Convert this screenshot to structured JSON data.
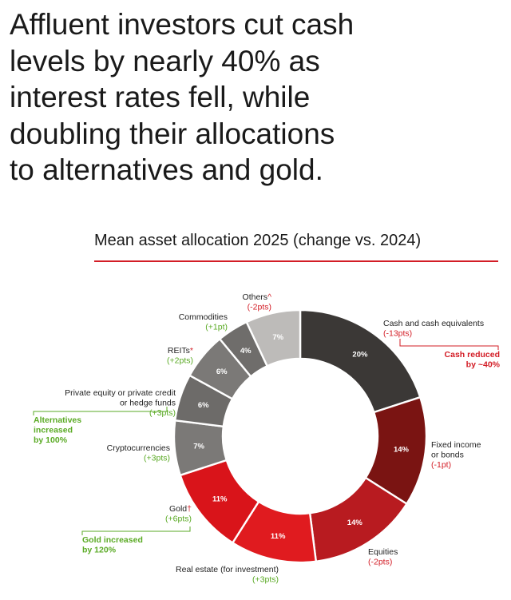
{
  "headline": [
    "Affluent investors cut cash",
    "levels by nearly 40% as",
    "interest rates fell, while",
    "doubling their allocations",
    "to alternatives and gold."
  ],
  "chart_data": {
    "type": "pie",
    "title": "Mean asset allocation 2025 (change vs. 2024)",
    "colors": {
      "accent_red": "#d31d26",
      "accent_green": "#5aaa24",
      "label_dark": "#222222"
    },
    "slices": [
      {
        "name": "Cash and cash equivalents",
        "value": 20,
        "value_label": "20%",
        "change": "(-13pts)",
        "change_dir": "down",
        "color": "#3b3836"
      },
      {
        "name": "Fixed income or bonds",
        "value": 14,
        "value_label": "14%",
        "change": "(-1pt)",
        "change_dir": "down",
        "color": "#7a1412"
      },
      {
        "name": "Equities",
        "value": 14,
        "value_label": "14%",
        "change": "(-2pts)",
        "change_dir": "down",
        "color": "#b81b20"
      },
      {
        "name": "Real estate (for investment)",
        "value": 11,
        "value_label": "11%",
        "change": "(+3pts)",
        "change_dir": "up",
        "color": "#e01b1f"
      },
      {
        "name": "Gold†",
        "value": 11,
        "value_label": "11%",
        "change": "(+6pts)",
        "change_dir": "up",
        "color": "#d9141a"
      },
      {
        "name": "Cryptocurrencies",
        "value": 7,
        "value_label": "7%",
        "change": "(+3pts)",
        "change_dir": "up",
        "color": "#7b7977"
      },
      {
        "name": "Private equity or private credit or hedge funds",
        "value": 6,
        "value_label": "6%",
        "change": "(+3pts)",
        "change_dir": "up",
        "color": "#6d6b69"
      },
      {
        "name": "REITs*",
        "value": 6,
        "value_label": "6%",
        "change": "(+2pts)",
        "change_dir": "up",
        "color": "#7b7977"
      },
      {
        "name": "Commodities",
        "value": 4,
        "value_label": "4%",
        "change": "(+1pt)",
        "change_dir": "up",
        "color": "#6f6d6b"
      },
      {
        "name": "Others^",
        "value": 7,
        "value_label": "7%",
        "change": "(-2pts)",
        "change_dir": "down",
        "color": "#bdbbb9"
      }
    ],
    "outside_labels": {
      "cash": {
        "lines": [
          "Cash and cash equivalents"
        ],
        "change": "(-13pts)"
      },
      "fixed": {
        "lines": [
          "Fixed income",
          "or bonds"
        ],
        "change": "(-1pt)"
      },
      "equities": {
        "lines": [
          "Equities"
        ],
        "change": "(-2pts)"
      },
      "realestate": {
        "lines": [
          "Real estate (for investment)"
        ],
        "change": "(+3pts)"
      },
      "gold": {
        "lines": [
          "Gold"
        ],
        "mark": "†",
        "change": "(+6pts)"
      },
      "crypto": {
        "lines": [
          "Cryptocurrencies"
        ],
        "change": "(+3pts)"
      },
      "pe": {
        "lines": [
          "Private equity or private credit",
          "or hedge funds"
        ],
        "change": "(+3pts)"
      },
      "reits": {
        "lines": [
          "REITs"
        ],
        "mark": "*",
        "change": "(+2pts)"
      },
      "commodities": {
        "lines": [
          "Commodities"
        ],
        "change": "(+1pt)"
      },
      "others": {
        "lines": [
          "Others"
        ],
        "mark": "^",
        "change": "(-2pts)"
      }
    },
    "annotations": {
      "cash_reduced": [
        "Cash reduced",
        "by ~40%"
      ],
      "alternatives_increased": [
        "Alternatives",
        "increased",
        "by 100%"
      ],
      "gold_increased": [
        "Gold increased",
        "by 120%"
      ]
    }
  }
}
